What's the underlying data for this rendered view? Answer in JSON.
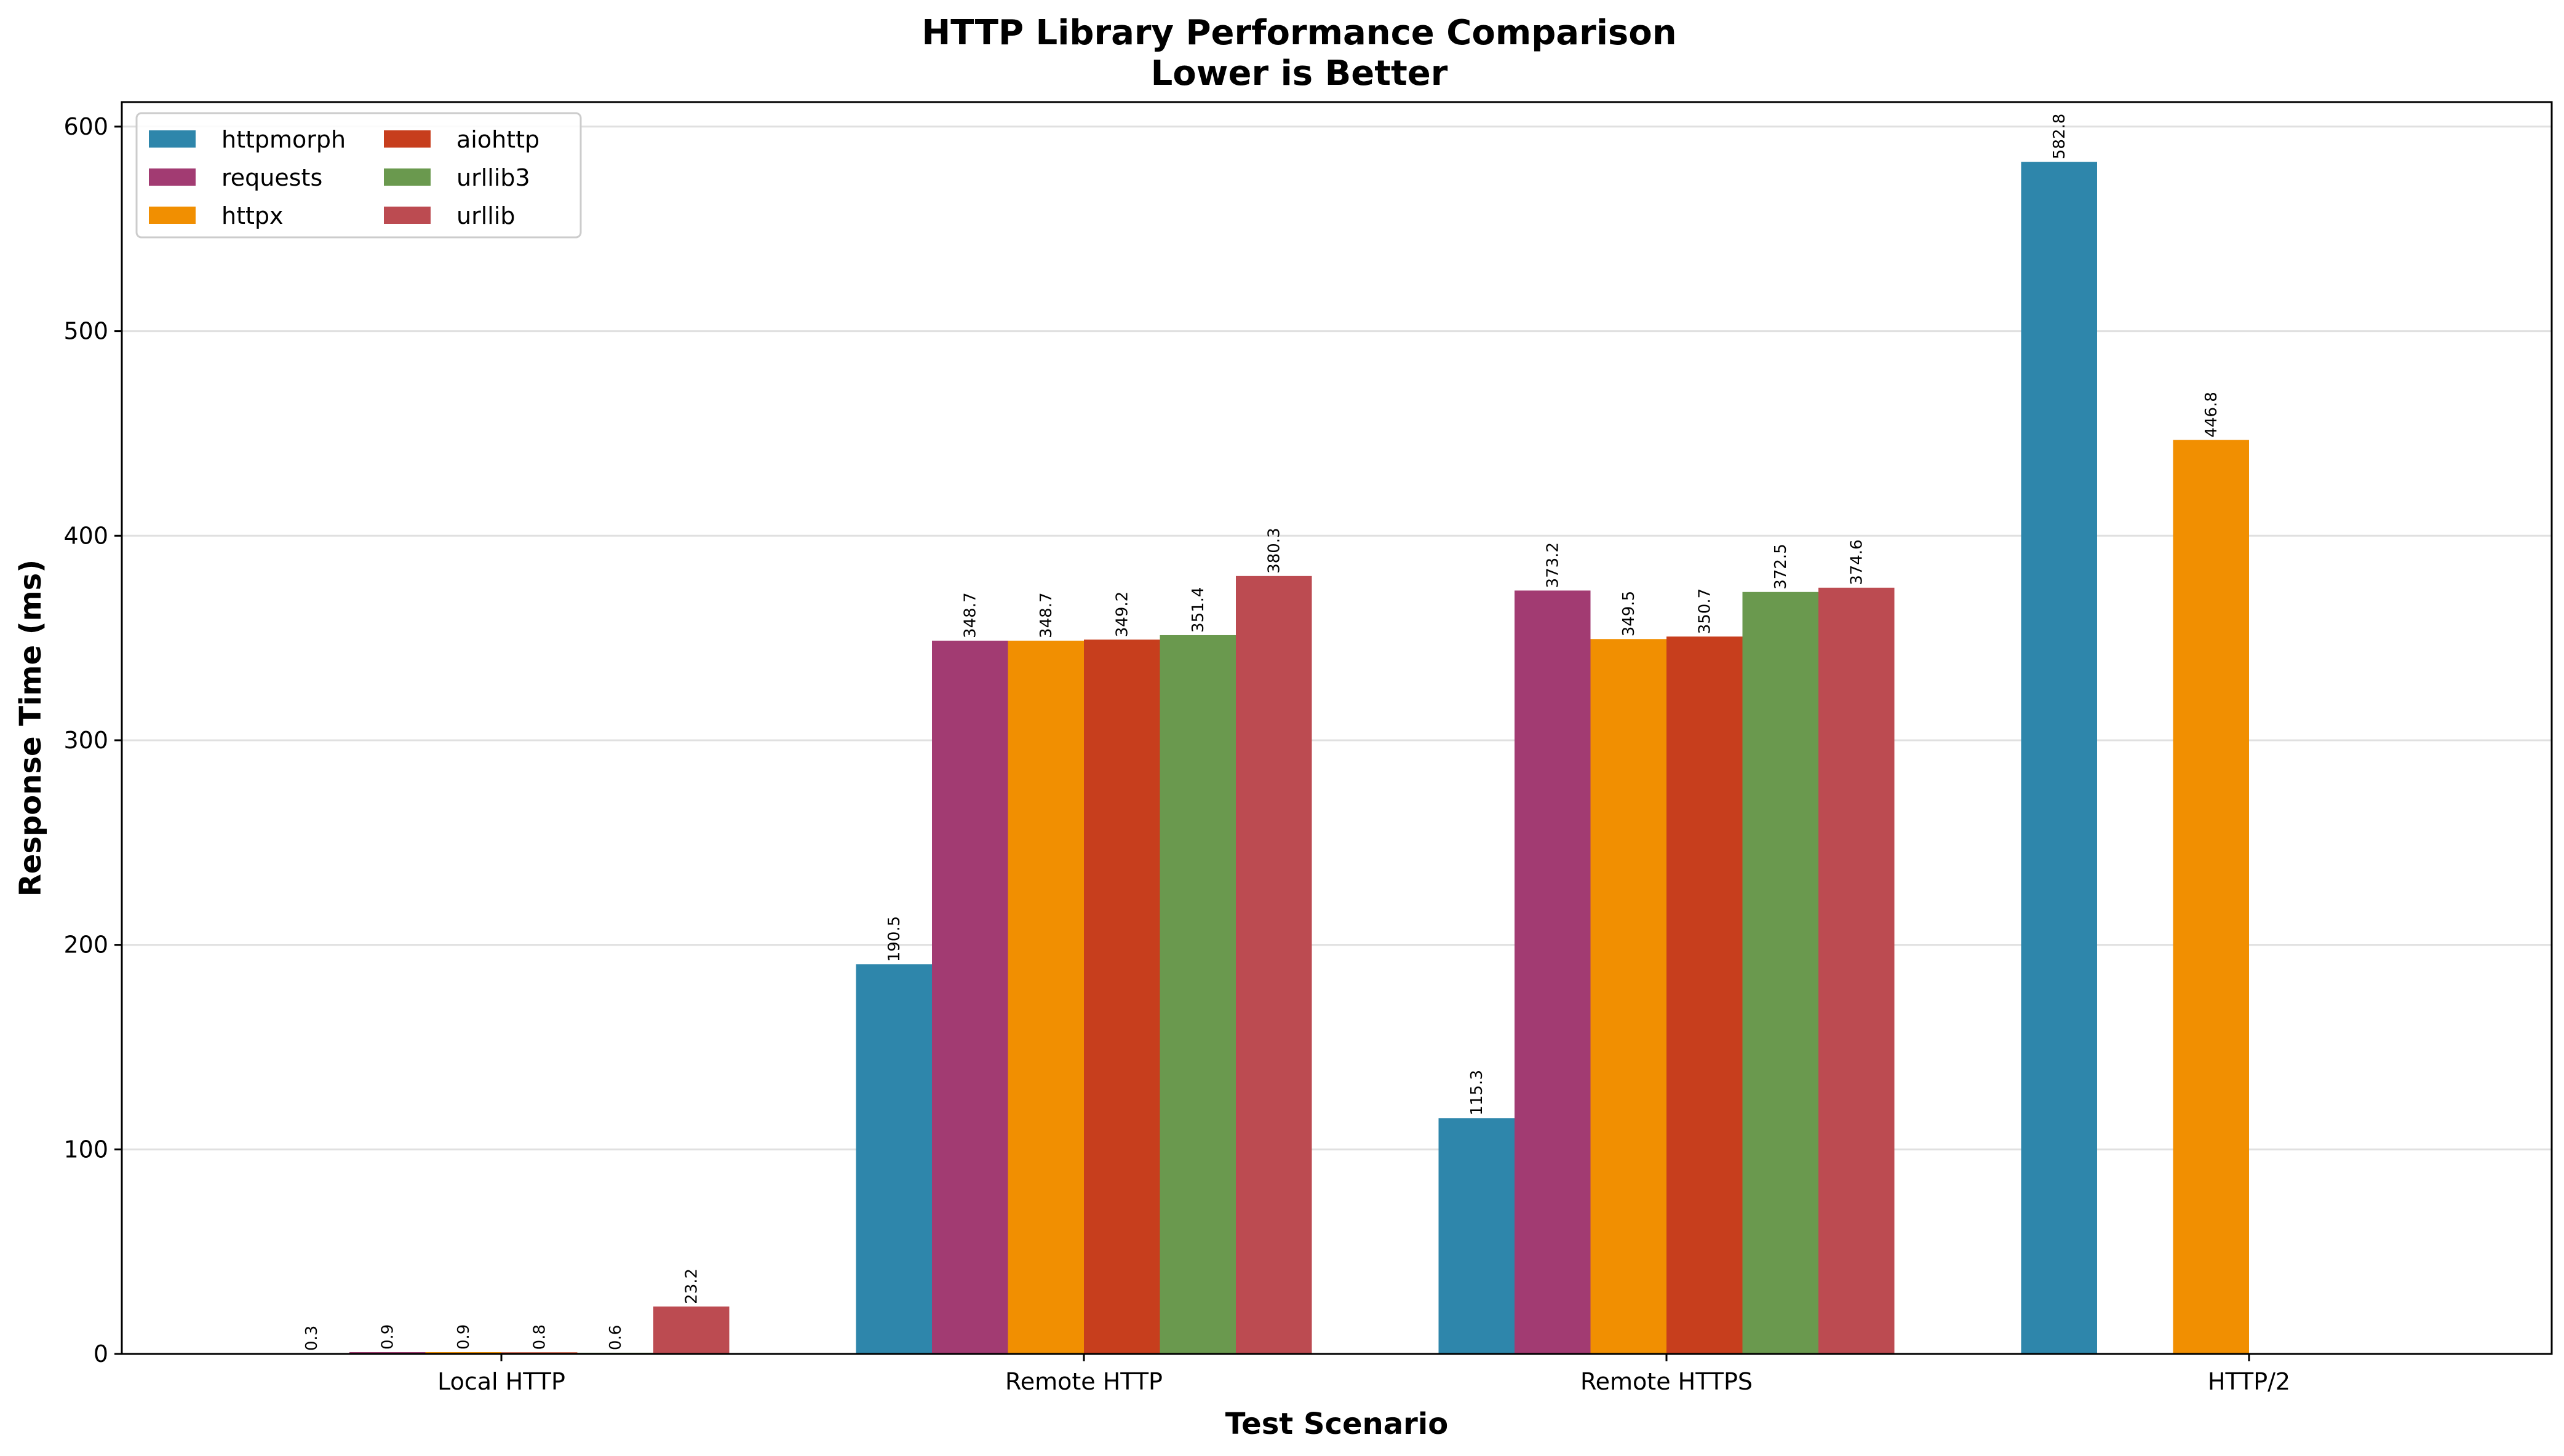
{
  "chart_data": {
    "type": "bar",
    "title": "HTTP Library Performance Comparison",
    "subtitle": "Lower is Better",
    "xlabel": "Test Scenario",
    "ylabel": "Response Time (ms)",
    "ylim": [
      0,
      612
    ],
    "yticks": [
      0,
      100,
      200,
      300,
      400,
      500,
      600
    ],
    "grid": "y",
    "legend_position": "top-left",
    "categories": [
      "Local HTTP",
      "Remote HTTP",
      "Remote HTTPS",
      "HTTP/2"
    ],
    "series": [
      {
        "name": "httpmorph",
        "color": "#2e86ab",
        "values": [
          0.3,
          190.5,
          115.3,
          582.8
        ],
        "labels": [
          "0.3",
          "190.5",
          "115.3",
          "582.8"
        ]
      },
      {
        "name": "requests",
        "color": "#a23b72",
        "values": [
          0.9,
          348.7,
          373.2,
          null
        ],
        "labels": [
          "0.9",
          "348.7",
          "373.2",
          null
        ]
      },
      {
        "name": "httpx",
        "color": "#f18f01",
        "values": [
          0.9,
          348.7,
          349.5,
          446.8
        ],
        "labels": [
          "0.9",
          "348.7",
          "349.5",
          "446.8"
        ]
      },
      {
        "name": "aiohttp",
        "color": "#c73e1d",
        "values": [
          0.8,
          349.2,
          350.7,
          null
        ],
        "labels": [
          "0.8",
          "349.2",
          "350.7",
          null
        ]
      },
      {
        "name": "urllib3",
        "color": "#6a994e",
        "values": [
          0.6,
          351.4,
          372.5,
          null
        ],
        "labels": [
          "0.6",
          "351.4",
          "372.5",
          null
        ]
      },
      {
        "name": "urllib",
        "color": "#bc4b51",
        "values": [
          23.2,
          380.3,
          374.6,
          null
        ],
        "labels": [
          "23.2",
          "380.3",
          "374.6",
          null
        ]
      }
    ]
  }
}
